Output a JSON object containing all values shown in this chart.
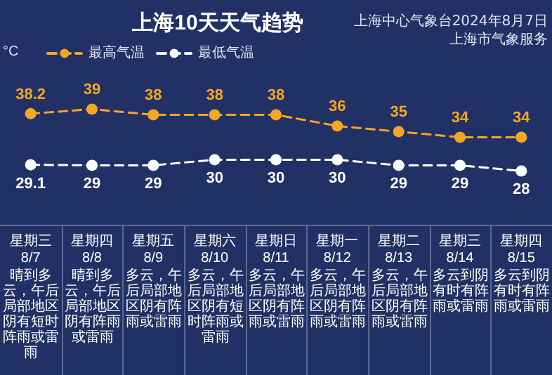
{
  "chart_data": {
    "type": "line",
    "title": "上海10天天气趋势",
    "ylabel": "°C",
    "annotations": [
      "上海中心气象台2024年8月7日",
      "上海市气象服务",
      "晴到多云，午后局部地区阴有短时阵雨或雷雨",
      "晴到多云，午后局部地区阴有阵雨或雷雨",
      "多云，午后局部地区阴有阵雨或雷雨",
      "多云，午后局部地区阴有短时阵雨或雷雨",
      "多云，午后局部地区阴有阵雨或雷雨",
      "多云，午后局部地区阴有阵雨或雷雨",
      "多云，午后局部地区阴有阵雨或雷雨",
      "多云到阴有时有阵雨或雷雨",
      "多云到阴有时有阵雨或雷雨"
    ],
    "categories": [
      "星期三\n8/7",
      "星期四\n8/8",
      "星期五\n8/9",
      "星期六\n8/10",
      "星期日\n8/11",
      "星期一\n8/12",
      "星期二\n8/13",
      "星期三\n8/14",
      "星期四\n8/15"
    ],
    "series": [
      {
        "name": "最高气温",
        "color": "#f5a623",
        "values": [
          38.2,
          39,
          38,
          38,
          38,
          36,
          35,
          34,
          34
        ]
      },
      {
        "name": "最低气温",
        "color": "#ffffff",
        "values": [
          29.1,
          29,
          29,
          30,
          30,
          30,
          29,
          29,
          28
        ]
      }
    ],
    "tick_labels": "x",
    "data_labels": true,
    "legend": "top left",
    "marker": "circle",
    "line_style": "dashed"
  }
}
